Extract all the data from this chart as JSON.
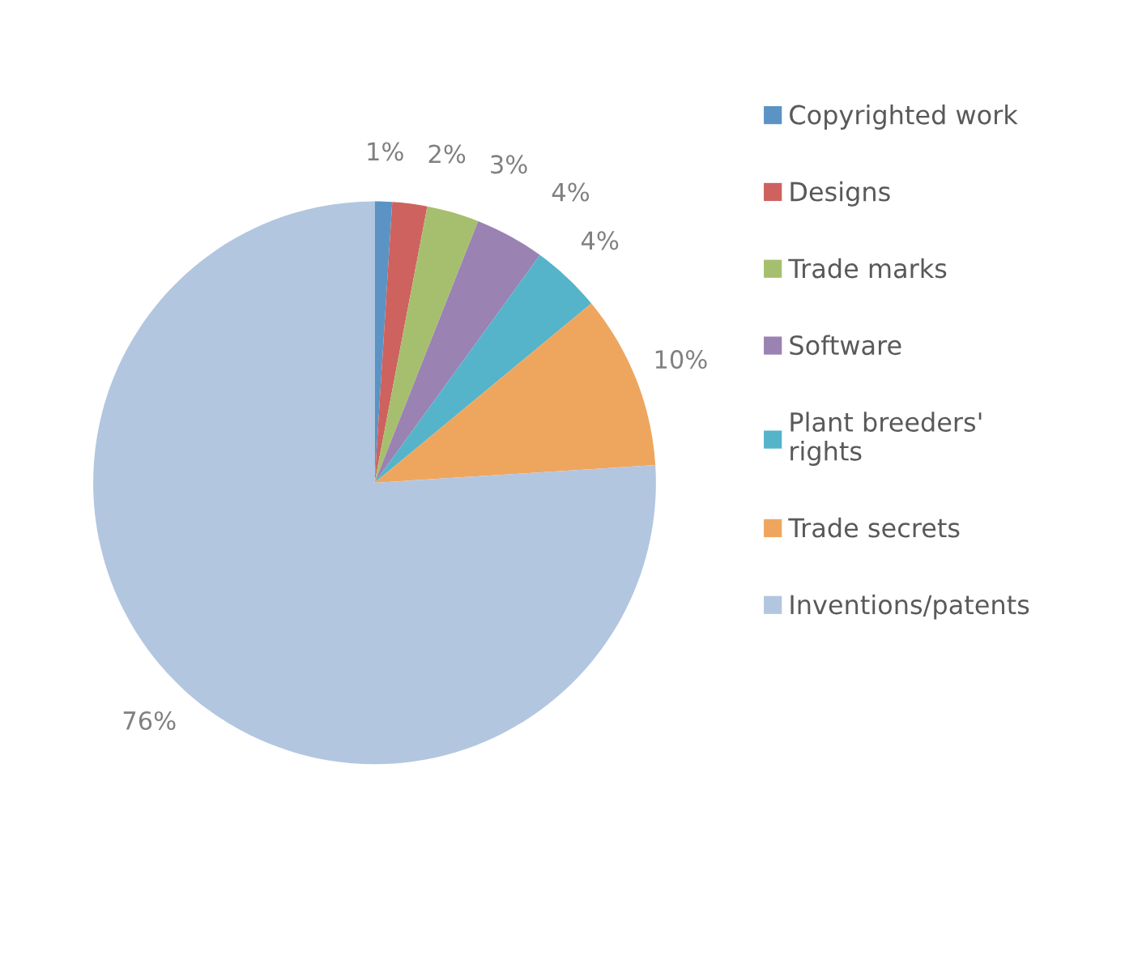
{
  "chart_data": {
    "type": "pie",
    "categories": [
      "Copyrighted work",
      "Designs",
      "Trade marks",
      "Software",
      "Plant breeders' rights",
      "Trade secrets",
      "Inventions/patents"
    ],
    "values": [
      1,
      2,
      3,
      4,
      4,
      10,
      76
    ],
    "colors": [
      "#5b93c5",
      "#cd625e",
      "#a6bf6e",
      "#9a82b3",
      "#55b4c9",
      "#eea65f",
      "#b3c6e0"
    ],
    "value_labels": [
      "1%",
      "2%",
      "3%",
      "4%",
      "4%",
      "10%",
      "76%"
    ],
    "legend": "right"
  }
}
